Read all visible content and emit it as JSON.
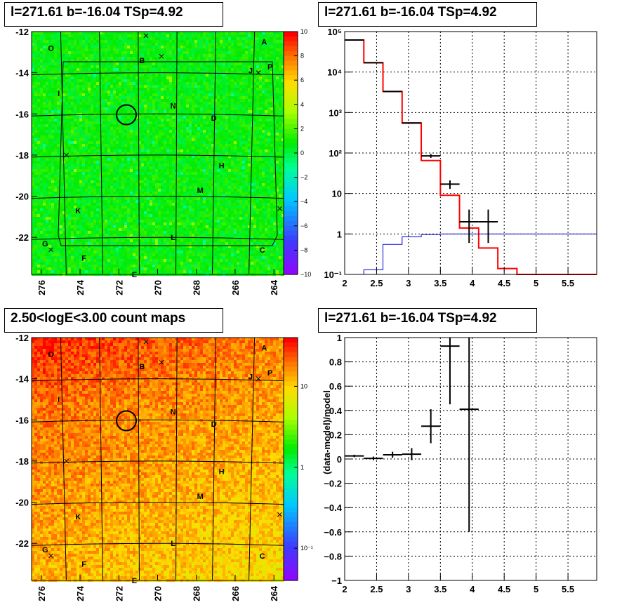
{
  "chart_data": [
    {
      "type": "heatmap",
      "title": "l=271.61 b=-16.04 TSp=4.92",
      "xlim": [
        263.5,
        276.5
      ],
      "ylim": [
        -23.8,
        -12.0
      ],
      "x_ticks": [
        "276",
        "274",
        "272",
        "270",
        "268",
        "266",
        "264"
      ],
      "x_tick_values": [
        276,
        274,
        272,
        270,
        268,
        266,
        264
      ],
      "y_ticks": [
        "-12",
        "-14",
        "-16",
        "-18",
        "-20",
        "-22"
      ],
      "y_tick_values": [
        -12,
        -14,
        -16,
        -18,
        -20,
        -22
      ],
      "colorbar": {
        "min": -10,
        "max": 10,
        "labels": [
          "10",
          "8",
          "6",
          "4",
          "2",
          "0",
          "−2",
          "−4",
          "−6",
          "−8",
          "−10"
        ],
        "values": [
          10,
          8,
          6,
          4,
          2,
          0,
          -2,
          -4,
          -6,
          -8,
          -10
        ]
      },
      "source_circle": {
        "l": 271.61,
        "b": -16.04
      },
      "labels": [
        {
          "text": "O",
          "l": 275.5,
          "b": -12.8
        },
        {
          "text": "A",
          "l": 264.5,
          "b": -12.5
        },
        {
          "text": "B",
          "l": 270.8,
          "b": -13.4
        },
        {
          "text": "P",
          "l": 264.2,
          "b": -13.7
        },
        {
          "text": "J",
          "l": 265.2,
          "b": -13.9
        },
        {
          "text": "I",
          "l": 275.1,
          "b": -15.0
        },
        {
          "text": "N",
          "l": 269.2,
          "b": -15.6
        },
        {
          "text": "D",
          "l": 267.1,
          "b": -16.2
        },
        {
          "text": "H",
          "l": 266.7,
          "b": -18.5
        },
        {
          "text": "M",
          "l": 267.8,
          "b": -19.7
        },
        {
          "text": "K",
          "l": 274.1,
          "b": -20.7
        },
        {
          "text": "G",
          "l": 275.8,
          "b": -22.3
        },
        {
          "text": "L",
          "l": 269.2,
          "b": -22.0
        },
        {
          "text": "C",
          "l": 264.6,
          "b": -22.6
        },
        {
          "text": "F",
          "l": 273.8,
          "b": -23.0
        },
        {
          "text": "E",
          "l": 271.2,
          "b": -23.8
        }
      ]
    },
    {
      "type": "line",
      "title": "l=271.61 b=-16.04 TSp=4.92",
      "log_y": true,
      "xlim": [
        2,
        5.95
      ],
      "ylim": [
        0.1,
        100000
      ],
      "grid": true,
      "x_ticks": [
        "2",
        "2.5",
        "3",
        "3.5",
        "4",
        "4.5",
        "5",
        "5.5"
      ],
      "x_tick_values": [
        2,
        2.5,
        3,
        3.5,
        4,
        4.5,
        5,
        5.5
      ],
      "y_ticks": [
        "10⁻¹",
        "1",
        "10",
        "10²",
        "10³",
        "10⁴",
        "10⁵"
      ],
      "y_tick_values": [
        0.1,
        1,
        10,
        100,
        1000,
        10000,
        100000
      ],
      "bin_edges": [
        2.0,
        2.3,
        2.6,
        2.9,
        3.2,
        3.5,
        3.8,
        4.1,
        4.4,
        4.7,
        5.0,
        5.3,
        5.6,
        5.95
      ],
      "series": [
        {
          "color": "#ff0000",
          "values": [
            62000,
            17000,
            3300,
            550,
            65,
            9,
            1.4,
            0.45,
            0.14,
            0.1,
            0.1,
            0.1,
            0.1
          ]
        },
        {
          "color": "#0000cc",
          "values": [
            0.09,
            0.13,
            0.55,
            0.85,
            0.97,
            1.0,
            1.0,
            1.0,
            1.0,
            1.0,
            1.0,
            1.0,
            1.0
          ]
        }
      ],
      "data_points": [
        {
          "x": 2.15,
          "y": 62000,
          "xerr": 0.15,
          "ylo": 61500,
          "yhi": 62500
        },
        {
          "x": 2.45,
          "y": 17000,
          "xerr": 0.15,
          "ylo": 16900,
          "yhi": 17100
        },
        {
          "x": 2.75,
          "y": 3300,
          "xerr": 0.15,
          "ylo": 3250,
          "yhi": 3350
        },
        {
          "x": 3.05,
          "y": 550,
          "xerr": 0.15,
          "ylo": 530,
          "yhi": 570
        },
        {
          "x": 3.35,
          "y": 85,
          "xerr": 0.15,
          "ylo": 76,
          "yhi": 94
        },
        {
          "x": 3.65,
          "y": 17,
          "xerr": 0.15,
          "ylo": 13,
          "yhi": 21
        },
        {
          "x": 3.95,
          "y": 2,
          "xerr": 0.15,
          "ylo": 0.6,
          "yhi": 4
        },
        {
          "x": 4.25,
          "y": 2,
          "xerr": 0.15,
          "ylo": 0.6,
          "yhi": 4
        }
      ]
    },
    {
      "type": "heatmap",
      "title": "2.50<logE<3.00 count maps",
      "xlim": [
        263.5,
        276.5
      ],
      "ylim": [
        -23.8,
        -12.0
      ],
      "x_ticks": [
        "276",
        "274",
        "272",
        "270",
        "268",
        "266",
        "264"
      ],
      "x_tick_values": [
        276,
        274,
        272,
        270,
        268,
        266,
        264
      ],
      "y_ticks": [
        "-12",
        "-14",
        "-16",
        "-18",
        "-20",
        "-22"
      ],
      "y_tick_values": [
        -12,
        -14,
        -16,
        -18,
        -20,
        -22
      ],
      "colorbar": {
        "log": true,
        "min": 0.04,
        "max": 40,
        "labels": [
          "10",
          "1",
          "10⁻¹"
        ],
        "values": [
          10,
          1,
          0.1
        ]
      },
      "source_circle": {
        "l": 271.61,
        "b": -16.04
      },
      "labels": [
        {
          "text": "O",
          "l": 275.5,
          "b": -12.8
        },
        {
          "text": "A",
          "l": 264.5,
          "b": -12.5
        },
        {
          "text": "B",
          "l": 270.8,
          "b": -13.4
        },
        {
          "text": "P",
          "l": 264.2,
          "b": -13.7
        },
        {
          "text": "J",
          "l": 265.2,
          "b": -13.9
        },
        {
          "text": "I",
          "l": 275.1,
          "b": -15.0
        },
        {
          "text": "N",
          "l": 269.2,
          "b": -15.6
        },
        {
          "text": "D",
          "l": 267.1,
          "b": -16.2
        },
        {
          "text": "H",
          "l": 266.7,
          "b": -18.5
        },
        {
          "text": "M",
          "l": 267.8,
          "b": -19.7
        },
        {
          "text": "K",
          "l": 274.1,
          "b": -20.7
        },
        {
          "text": "G",
          "l": 275.8,
          "b": -22.3
        },
        {
          "text": "L",
          "l": 269.2,
          "b": -22.0
        },
        {
          "text": "C",
          "l": 264.6,
          "b": -22.6
        },
        {
          "text": "F",
          "l": 273.8,
          "b": -23.0
        },
        {
          "text": "E",
          "l": 271.2,
          "b": -23.8
        }
      ]
    },
    {
      "type": "scatter",
      "title": "l=271.61 b=-16.04 TSp=4.92",
      "ylabel": "(data-model)/model",
      "xlim": [
        2,
        5.95
      ],
      "ylim": [
        -1,
        1
      ],
      "grid": true,
      "x_ticks": [
        "2",
        "2.5",
        "3",
        "3.5",
        "4",
        "4.5",
        "5",
        "5.5"
      ],
      "x_tick_values": [
        2,
        2.5,
        3,
        3.5,
        4,
        4.5,
        5,
        5.5
      ],
      "y_ticks": [
        "1",
        "0.8",
        "0.6",
        "0.4",
        "0.2",
        "0",
        "−0.2",
        "−0.4",
        "−0.6",
        "−0.8",
        "−1"
      ],
      "y_tick_values": [
        1,
        0.8,
        0.6,
        0.4,
        0.2,
        0,
        -0.2,
        -0.4,
        -0.6,
        -0.8,
        -1
      ],
      "data_points": [
        {
          "x": 2.15,
          "y": 0.025,
          "xerr": 0.15,
          "ylo": 0.015,
          "yhi": 0.035
        },
        {
          "x": 2.45,
          "y": 0.005,
          "xerr": 0.15,
          "ylo": -0.01,
          "yhi": 0.02
        },
        {
          "x": 2.75,
          "y": 0.035,
          "xerr": 0.15,
          "ylo": 0.01,
          "yhi": 0.06
        },
        {
          "x": 3.05,
          "y": 0.04,
          "xerr": 0.15,
          "ylo": -0.01,
          "yhi": 0.09
        },
        {
          "x": 3.35,
          "y": 0.27,
          "xerr": 0.15,
          "ylo": 0.13,
          "yhi": 0.41
        },
        {
          "x": 3.65,
          "y": 0.93,
          "xerr": 0.15,
          "ylo": 0.45,
          "yhi": 1.0
        },
        {
          "x": 3.95,
          "y": 0.41,
          "xerr": 0.15,
          "ylo": -0.6,
          "yhi": 1.0
        }
      ]
    }
  ]
}
